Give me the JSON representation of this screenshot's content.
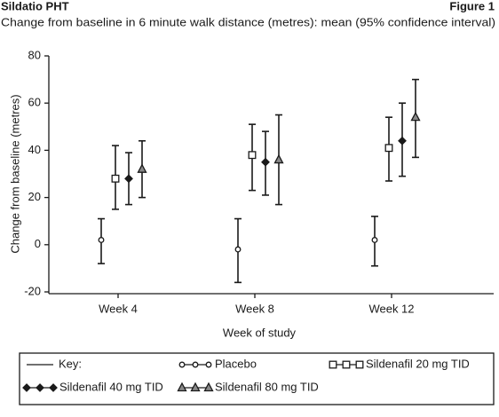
{
  "chart_data": {
    "type": "errorbar",
    "header_left": "Sildatio PHT",
    "header_right": "Figure 1",
    "title": "Change from baseline in 6 minute walk distance (metres): mean (95% confidence interval)",
    "x_label": "Week of study",
    "y_label": "Change from baseline (metres)",
    "categories": [
      "Week 4",
      "Week 8",
      "Week 12"
    ],
    "ylim": [
      -20,
      80
    ],
    "yticks": [
      -20,
      0,
      20,
      40,
      60,
      80
    ],
    "legend_title": "Key:",
    "series": [
      {
        "name": "Placebo",
        "color": "#1a1a1a",
        "marker": "circle",
        "values": [
          2,
          -2,
          2
        ],
        "lower": [
          -8,
          -16,
          -9
        ],
        "upper": [
          11,
          11,
          12
        ]
      },
      {
        "name": "Sildenafil 20 mg TID",
        "color": "#1a1a1a",
        "marker": "square",
        "values": [
          28,
          38,
          41
        ],
        "lower": [
          15,
          23,
          27
        ],
        "upper": [
          42,
          51,
          54
        ]
      },
      {
        "name": "Sildenafil 40 mg TID",
        "color": "#1a1a1a",
        "marker": "diamond",
        "values": [
          28,
          35,
          44
        ],
        "lower": [
          17,
          21,
          29
        ],
        "upper": [
          39,
          48,
          60
        ]
      },
      {
        "name": "Sildenafil 80 mg TID",
        "color": "#1a1a1a",
        "marker": "triangle",
        "values": [
          32,
          36,
          54
        ],
        "lower": [
          20,
          17,
          37
        ],
        "upper": [
          44,
          55,
          70
        ]
      }
    ]
  }
}
